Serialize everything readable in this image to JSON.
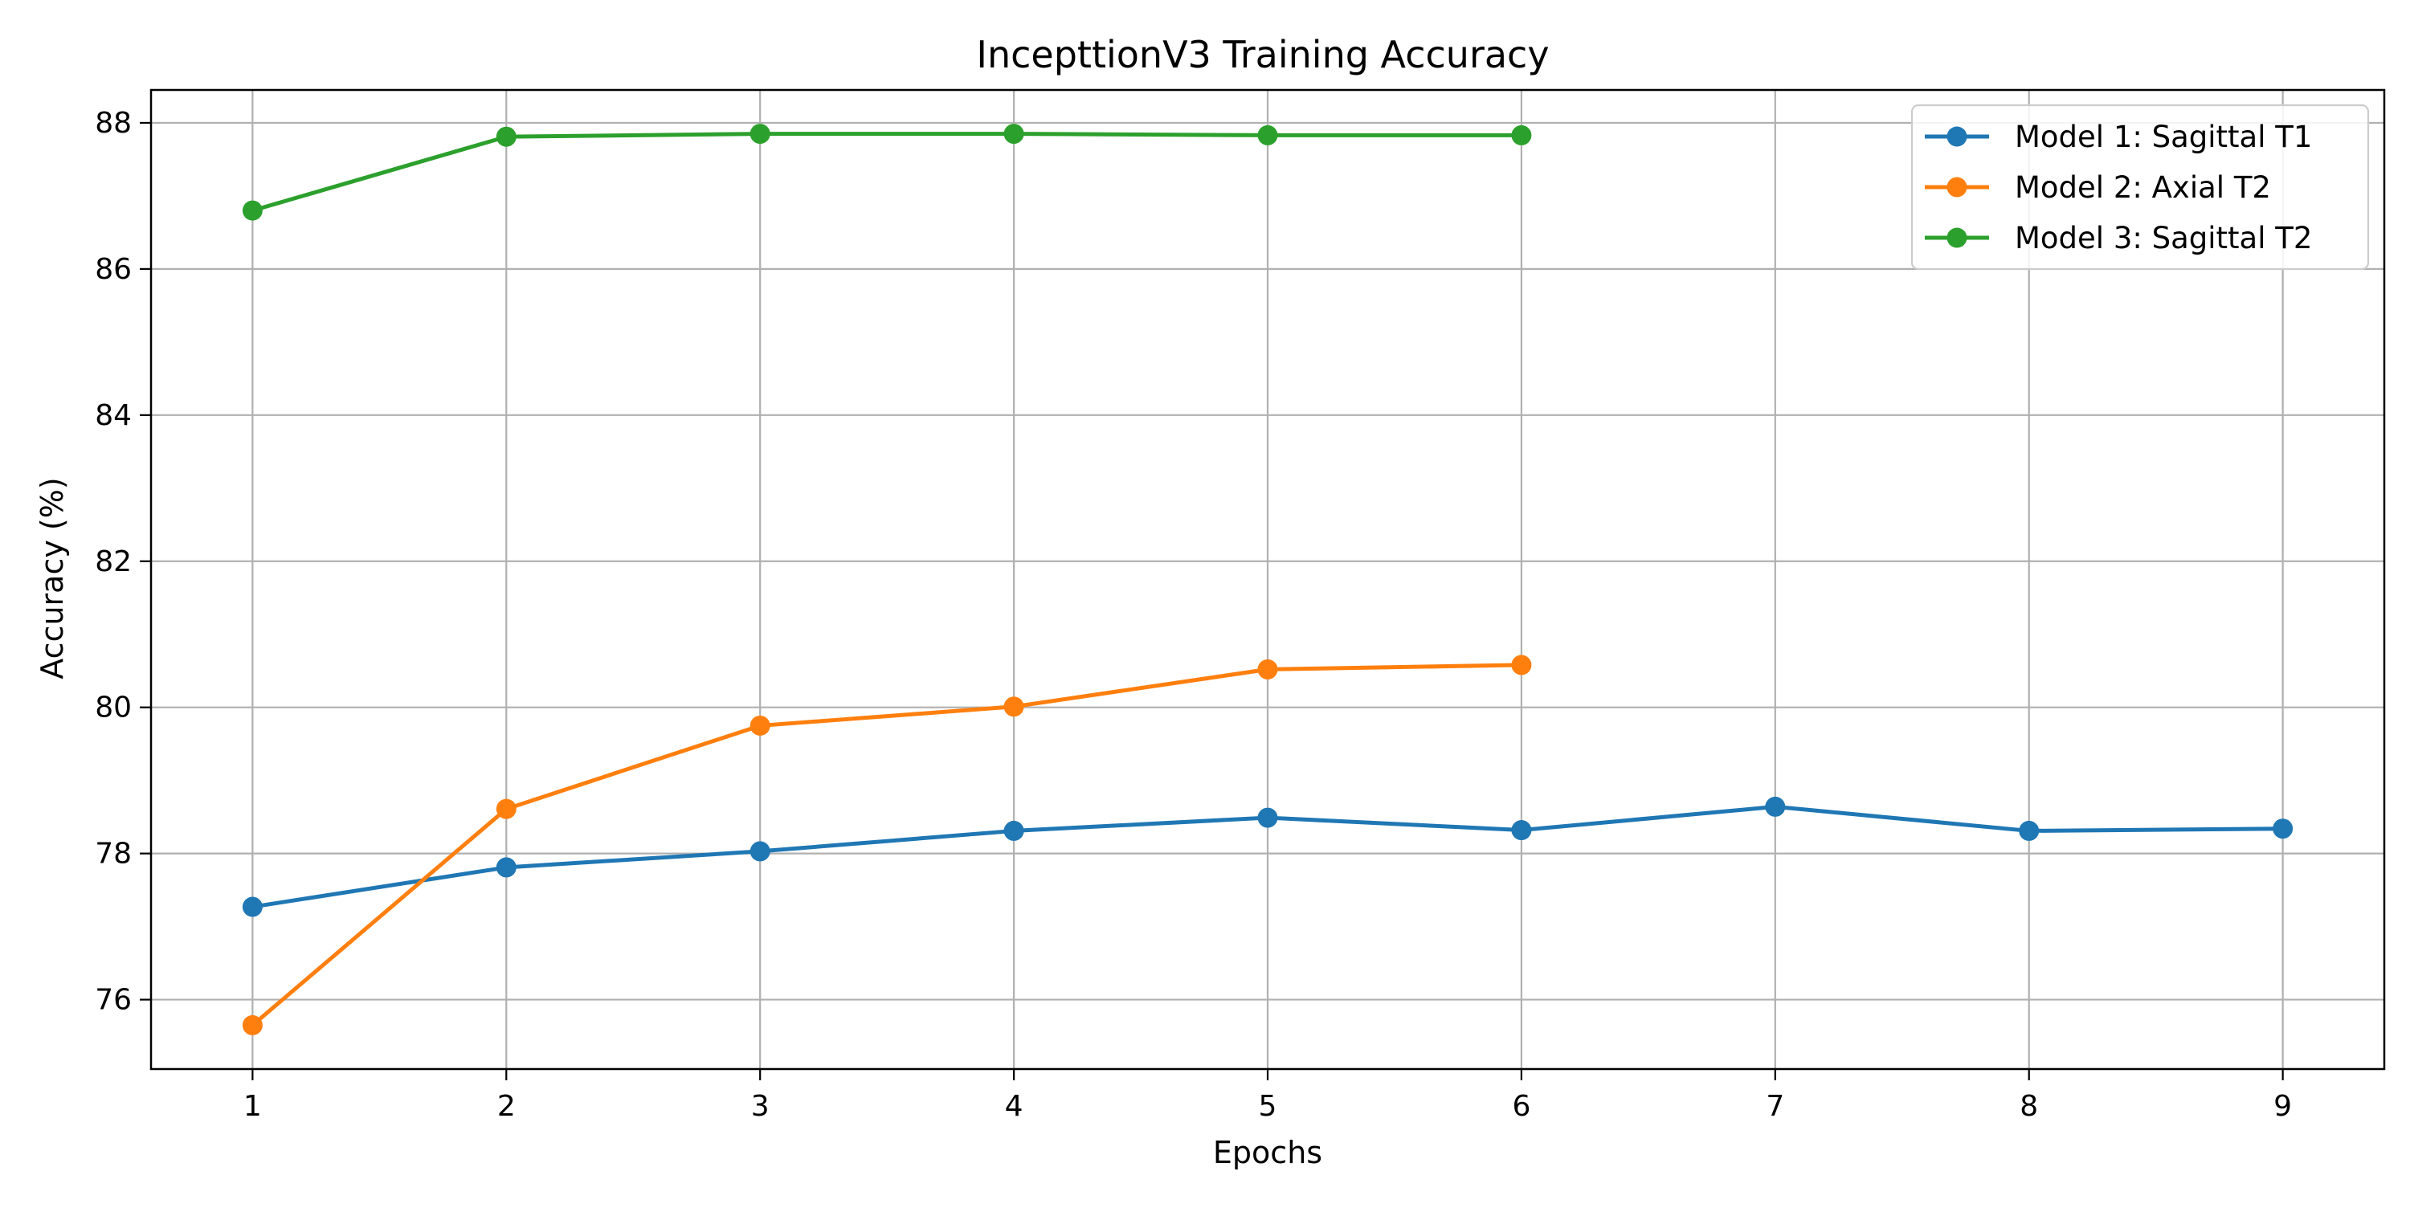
{
  "chart_data": {
    "type": "line",
    "title": "IncepttionV3 Training Accuracy",
    "xlabel": "Epochs",
    "ylabel": "Accuracy (%)",
    "xlim": [
      0.6,
      9.4
    ],
    "ylim": [
      75.05,
      88.45
    ],
    "xticks": [
      1,
      2,
      3,
      4,
      5,
      6,
      7,
      8,
      9
    ],
    "yticks": [
      76,
      78,
      80,
      82,
      84,
      86,
      88
    ],
    "grid": true,
    "legend_position": "top-right",
    "series": [
      {
        "name": "Model 1: Sagittal T1",
        "color": "#1f77b4",
        "x": [
          1,
          2,
          3,
          4,
          5,
          6,
          7,
          8,
          9
        ],
        "y": [
          77.27,
          77.81,
          78.03,
          78.31,
          78.49,
          78.32,
          78.64,
          78.31,
          78.34
        ]
      },
      {
        "name": "Model 2: Axial T2",
        "color": "#ff7f0e",
        "x": [
          1,
          2,
          3,
          4,
          5,
          6
        ],
        "y": [
          75.65,
          78.61,
          79.75,
          80.01,
          80.52,
          80.58
        ]
      },
      {
        "name": "Model 3: Sagittal T2",
        "color": "#2ca02c",
        "x": [
          1,
          2,
          3,
          4,
          5,
          6
        ],
        "y": [
          86.8,
          87.81,
          87.85,
          87.85,
          87.83,
          87.83
        ]
      }
    ]
  }
}
